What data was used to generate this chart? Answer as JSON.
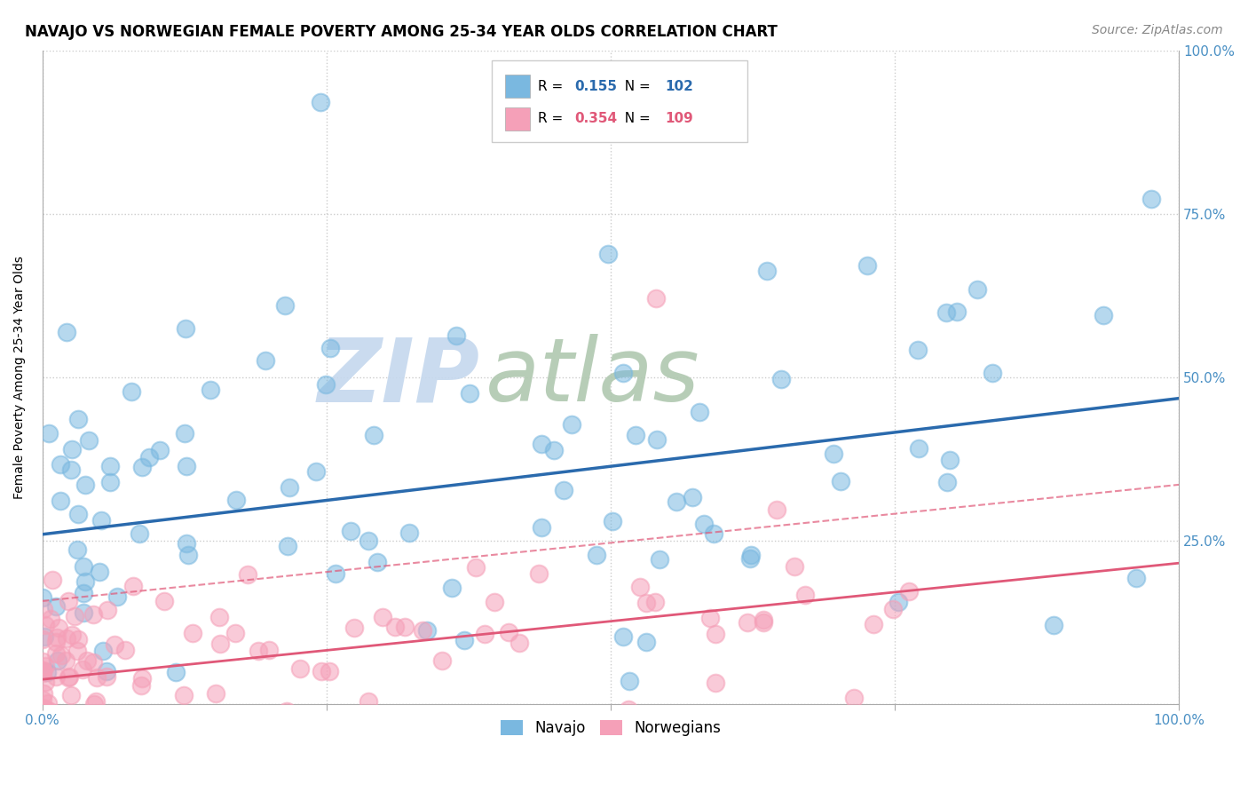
{
  "title": "NAVAJO VS NORWEGIAN FEMALE POVERTY AMONG 25-34 YEAR OLDS CORRELATION CHART",
  "source": "Source: ZipAtlas.com",
  "ylabel": "Female Poverty Among 25-34 Year Olds",
  "navajo_R": 0.155,
  "navajo_N": 102,
  "norwegian_R": 0.354,
  "norwegian_N": 109,
  "navajo_color": "#7ab8e0",
  "norwegian_color": "#f5a0b8",
  "navajo_line_color": "#2a6aad",
  "norwegian_line_color": "#e05878",
  "background_color": "#ffffff",
  "grid_color": "#cccccc",
  "watermark_zip": "ZIP",
  "watermark_atlas": "atlas",
  "watermark_color_zip": "#c5d8ee",
  "watermark_color_atlas": "#b0c8b0",
  "legend_label_navajo": "Navajo",
  "legend_label_norwegian": "Norwegians",
  "xlim": [
    0,
    1
  ],
  "ylim": [
    0,
    1
  ],
  "xticks": [
    0,
    0.25,
    0.5,
    0.75,
    1.0
  ],
  "yticks": [
    0,
    0.25,
    0.5,
    0.75,
    1.0
  ],
  "xticklabels": [
    "0.0%",
    "",
    "",
    "",
    "100.0%"
  ],
  "right_yticklabels": [
    "",
    "25.0%",
    "50.0%",
    "75.0%",
    "100.0%"
  ],
  "title_fontsize": 12,
  "axis_fontsize": 10,
  "tick_fontsize": 11,
  "tick_color": "#4a90c4",
  "navajo_seed": 42,
  "norwegian_seed": 7
}
